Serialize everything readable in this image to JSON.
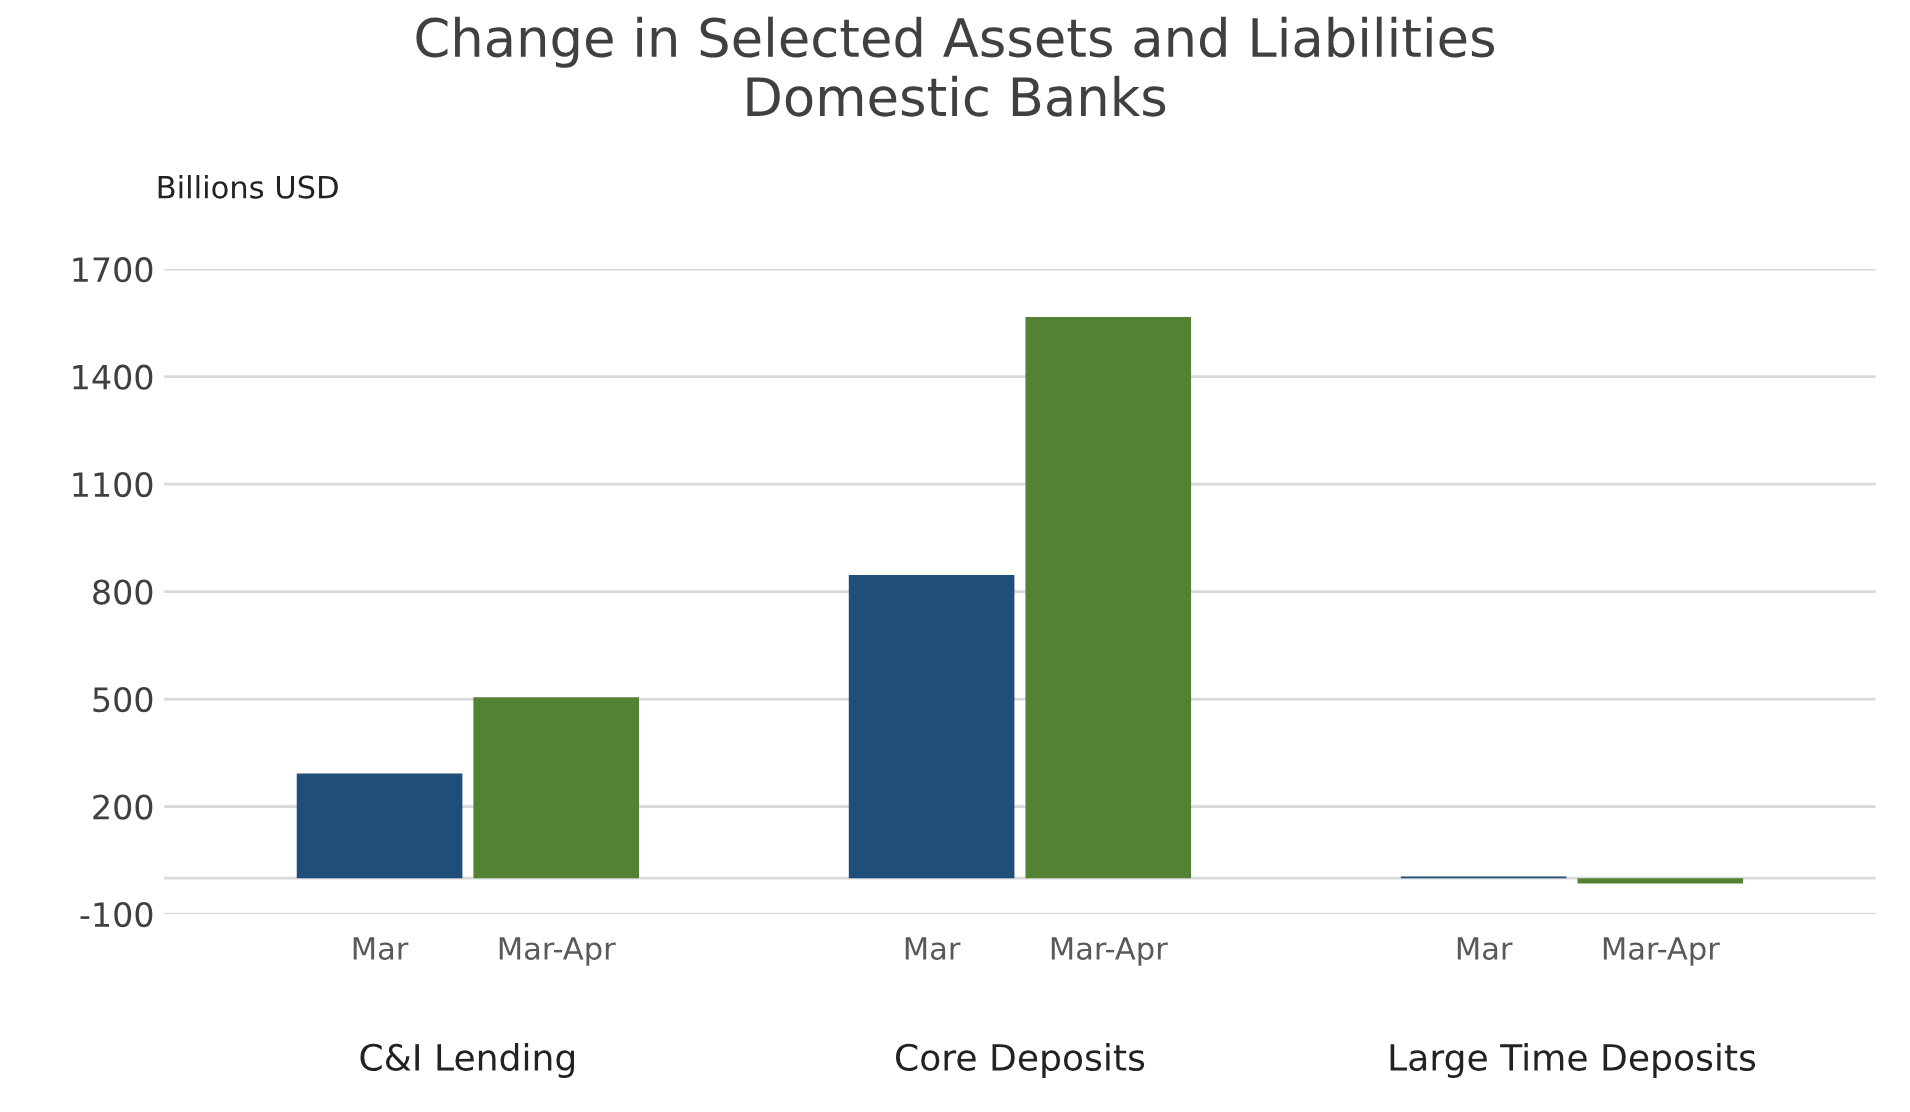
{
  "chart_data": {
    "type": "bar",
    "title": "Change in Selected Assets and Liabilities\nDomestic Banks",
    "ylabel": "Billions USD",
    "categories": [
      "C&I Lending",
      "Core Deposits",
      "Large Time Deposits"
    ],
    "series": [
      {
        "name": "Mar",
        "color": "#1f4e79",
        "values": [
          292,
          846,
          5
        ]
      },
      {
        "name": "Mar-Apr",
        "color": "#548235",
        "values": [
          505,
          1566,
          -15
        ]
      }
    ],
    "ylim": [
      -100,
      1700
    ],
    "yticks": [
      -100,
      200,
      500,
      800,
      1100,
      1400,
      1700
    ],
    "grid": "y",
    "legend": false
  }
}
